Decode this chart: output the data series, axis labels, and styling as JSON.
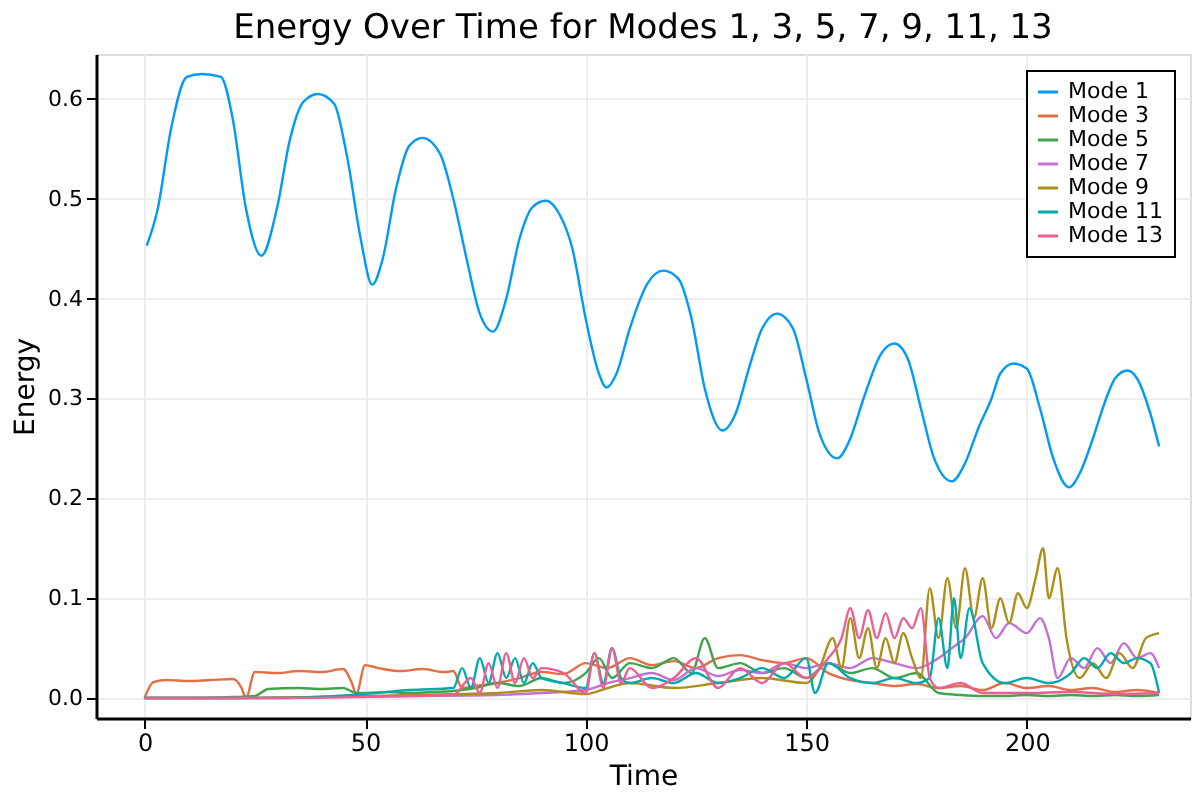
{
  "chart_data": {
    "type": "line",
    "title": "Energy Over Time for Modes 1, 3, 5, 7, 9, 11, 13",
    "xlabel": "Time",
    "ylabel": "Energy",
    "xlim": [
      -11,
      237
    ],
    "xticks": [
      0,
      50,
      100,
      150,
      200
    ],
    "ylim": [
      -0.02,
      0.645
    ],
    "yticks": [
      {
        "value": 0,
        "label": "0.0"
      },
      0.1,
      0.2,
      0.3,
      0.4,
      0.5,
      0.6
    ],
    "grid": true,
    "legend": "top right",
    "line_style": "solid",
    "marker": "none",
    "series": [
      {
        "name": "Mode 1",
        "color": "#009afa",
        "x": [
          0.5,
          3,
          6,
          9.6,
          13,
          17.3,
          20,
          23,
          26.5,
          30,
          33,
          36,
          39.3,
          43,
          46,
          49,
          51.6,
          54,
          57,
          60,
          63,
          67,
          70,
          73,
          76,
          79,
          82,
          85,
          88,
          91,
          94,
          97,
          100,
          103,
          104.7,
          107,
          110,
          114,
          117.6,
          121,
          124,
          127,
          131,
          134,
          137,
          140,
          143.4,
          147,
          150,
          153,
          157,
          160,
          163,
          167,
          170,
          173,
          176,
          179,
          183,
          186,
          189,
          192,
          194,
          197,
          200,
          203,
          206,
          209.6,
          212,
          215,
          218,
          220,
          222.8,
          225,
          228,
          230
        ],
        "values": [
          0.453,
          0.49,
          0.57,
          0.622,
          0.625,
          0.622,
          0.58,
          0.49,
          0.443,
          0.49,
          0.56,
          0.597,
          0.605,
          0.595,
          0.54,
          0.46,
          0.414,
          0.44,
          0.51,
          0.553,
          0.561,
          0.545,
          0.5,
          0.44,
          0.385,
          0.367,
          0.4,
          0.46,
          0.492,
          0.498,
          0.485,
          0.45,
          0.38,
          0.325,
          0.311,
          0.325,
          0.37,
          0.415,
          0.428,
          0.42,
          0.38,
          0.31,
          0.268,
          0.285,
          0.33,
          0.37,
          0.385,
          0.37,
          0.32,
          0.265,
          0.24,
          0.26,
          0.3,
          0.345,
          0.355,
          0.34,
          0.29,
          0.24,
          0.217,
          0.235,
          0.27,
          0.3,
          0.325,
          0.335,
          0.33,
          0.29,
          0.24,
          0.211,
          0.225,
          0.26,
          0.3,
          0.32,
          0.328,
          0.32,
          0.285,
          0.252
        ]
      },
      {
        "name": "Mode 3",
        "color": "#e36f47",
        "x": [
          0,
          2,
          5,
          10,
          15,
          20,
          22,
          23,
          25,
          30,
          35,
          40,
          45,
          47,
          48,
          50,
          53,
          58,
          63,
          68,
          70,
          72,
          75,
          80,
          85,
          90,
          95,
          100,
          105,
          110,
          115,
          120,
          125,
          130,
          135,
          140,
          145,
          150,
          155,
          160,
          165,
          170,
          175,
          180,
          185,
          190,
          195,
          200,
          205,
          210,
          215,
          220,
          225,
          230
        ],
        "values": [
          0,
          0.016,
          0.018,
          0.017,
          0.018,
          0.019,
          0.01,
          0,
          0.026,
          0.025,
          0.027,
          0.026,
          0.029,
          0.015,
          0.004,
          0.033,
          0.03,
          0.027,
          0.029,
          0.026,
          0.027,
          0.01,
          0.012,
          0.015,
          0.02,
          0.026,
          0.024,
          0.035,
          0.03,
          0.04,
          0.033,
          0.037,
          0.03,
          0.04,
          0.043,
          0.038,
          0.035,
          0.04,
          0.025,
          0.018,
          0.015,
          0.012,
          0.014,
          0.01,
          0.012,
          0.008,
          0.015,
          0.01,
          0.012,
          0.008,
          0.01,
          0.006,
          0.008,
          0.005
        ]
      },
      {
        "name": "Mode 5",
        "color": "#3ea44e",
        "x": [
          0,
          10,
          20,
          25,
          28,
          35,
          40,
          45,
          48,
          50,
          55,
          60,
          65,
          70,
          75,
          80,
          85,
          90,
          95,
          100,
          103,
          106,
          110,
          115,
          120,
          124,
          127,
          130,
          135,
          140,
          145,
          150,
          155,
          160,
          165,
          170,
          175,
          180,
          185,
          190,
          195,
          200,
          205,
          210,
          215,
          220,
          225,
          230
        ],
        "values": [
          0,
          0,
          0.001,
          0.002,
          0.009,
          0.01,
          0.009,
          0.01,
          0.005,
          0.005,
          0.006,
          0.005,
          0.006,
          0.007,
          0.01,
          0.015,
          0.012,
          0.02,
          0.015,
          0.025,
          0.04,
          0.02,
          0.035,
          0.03,
          0.04,
          0.025,
          0.06,
          0.03,
          0.035,
          0.025,
          0.03,
          0.02,
          0.035,
          0.025,
          0.03,
          0.02,
          0.025,
          0.005,
          0.003,
          0.002,
          0.002,
          0.003,
          0.002,
          0.003,
          0.002,
          0.003,
          0.002,
          0.003
        ]
      },
      {
        "name": "Mode 7",
        "color": "#c371d2",
        "x": [
          0,
          20,
          40,
          60,
          80,
          90,
          100,
          105,
          110,
          115,
          120,
          125,
          130,
          135,
          140,
          145,
          150,
          155,
          160,
          165,
          170,
          175,
          180,
          183,
          186,
          190,
          193,
          196,
          200,
          203,
          205,
          207,
          210,
          213,
          216,
          219,
          222,
          225,
          228,
          230
        ],
        "values": [
          0,
          0,
          0.001,
          0.002,
          0.003,
          0.005,
          0.008,
          0.015,
          0.02,
          0.025,
          0.018,
          0.03,
          0.022,
          0.028,
          0.025,
          0.035,
          0.03,
          0.035,
          0.03,
          0.04,
          0.035,
          0.03,
          0.04,
          0.05,
          0.06,
          0.082,
          0.06,
          0.075,
          0.065,
          0.08,
          0.06,
          0.02,
          0.04,
          0.03,
          0.05,
          0.035,
          0.055,
          0.04,
          0.045,
          0.03
        ]
      },
      {
        "name": "Mode 9",
        "color": "#ac8e18",
        "x": [
          0,
          20,
          40,
          60,
          80,
          90,
          100,
          105,
          110,
          120,
          130,
          140,
          150,
          153,
          156,
          158,
          160,
          162,
          164,
          166,
          168,
          170,
          172,
          174,
          176,
          178,
          180,
          182,
          184,
          186,
          188,
          190,
          192,
          194,
          196,
          198,
          200,
          202,
          203.7,
          205,
          207,
          209,
          212,
          215,
          218,
          221,
          224,
          227,
          230
        ],
        "values": [
          0,
          0,
          0.001,
          0.003,
          0.005,
          0.008,
          0.004,
          0.01,
          0.015,
          0.01,
          0.015,
          0.02,
          0.015,
          0.03,
          0.06,
          0.03,
          0.08,
          0.04,
          0.07,
          0.03,
          0.06,
          0.035,
          0.065,
          0.04,
          0.02,
          0.11,
          0.06,
          0.12,
          0.07,
          0.13,
          0.08,
          0.12,
          0.07,
          0.1,
          0.075,
          0.105,
          0.09,
          0.12,
          0.15,
          0.1,
          0.13,
          0.06,
          0.02,
          0.035,
          0.02,
          0.045,
          0.03,
          0.06,
          0.065
        ]
      },
      {
        "name": "Mode 11",
        "color": "#00aaae",
        "x": [
          0,
          30,
          50,
          60,
          70,
          72,
          74,
          76,
          78,
          80,
          82,
          84,
          86,
          88,
          90,
          95,
          100,
          102,
          104,
          106,
          108,
          110,
          115,
          120,
          125,
          130,
          135,
          140,
          145,
          150,
          152,
          155,
          160,
          165,
          170,
          175,
          178,
          180,
          182,
          183.5,
          185,
          187,
          190,
          195,
          200,
          205,
          210,
          213,
          216,
          219,
          222,
          225,
          228,
          230
        ],
        "values": [
          0,
          0,
          0.004,
          0.008,
          0.01,
          0.03,
          0.01,
          0.04,
          0.015,
          0.045,
          0.02,
          0.04,
          0.015,
          0.035,
          0.02,
          0.015,
          0.01,
          0.045,
          0.015,
          0.05,
          0.02,
          0.015,
          0.02,
          0.015,
          0.025,
          0.015,
          0.02,
          0.03,
          0.02,
          0.04,
          0.005,
          0.035,
          0.02,
          0.015,
          0.02,
          0.015,
          0.02,
          0.08,
          0.03,
          0.1,
          0.04,
          0.09,
          0.035,
          0.015,
          0.02,
          0.015,
          0.025,
          0.04,
          0.03,
          0.045,
          0.035,
          0.04,
          0.035,
          0.005
        ]
      },
      {
        "name": "Mode 13",
        "color": "#ed5e93",
        "x": [
          0,
          30,
          60,
          70,
          74,
          76,
          78,
          80,
          82,
          84,
          86,
          88,
          90,
          95,
          100,
          102,
          104,
          106,
          108,
          110,
          115,
          120,
          125,
          130,
          135,
          140,
          145,
          150,
          155,
          158,
          160,
          162,
          164,
          166,
          168,
          170,
          172,
          174,
          176,
          178,
          180,
          185,
          190,
          200,
          210,
          220,
          230
        ],
        "values": [
          0,
          0,
          0.002,
          0.003,
          0.02,
          0.005,
          0.035,
          0.01,
          0.045,
          0.015,
          0.04,
          0.02,
          0.03,
          0.025,
          0.005,
          0.045,
          0.01,
          0.05,
          0.015,
          0.03,
          0.01,
          0.02,
          0.04,
          0.01,
          0.03,
          0.015,
          0.035,
          0.02,
          0.04,
          0.06,
          0.09,
          0.06,
          0.088,
          0.06,
          0.085,
          0.06,
          0.08,
          0.07,
          0.09,
          0.02,
          0.01,
          0.015,
          0.005,
          0.005,
          0.006,
          0.004,
          0.005
        ]
      }
    ]
  }
}
